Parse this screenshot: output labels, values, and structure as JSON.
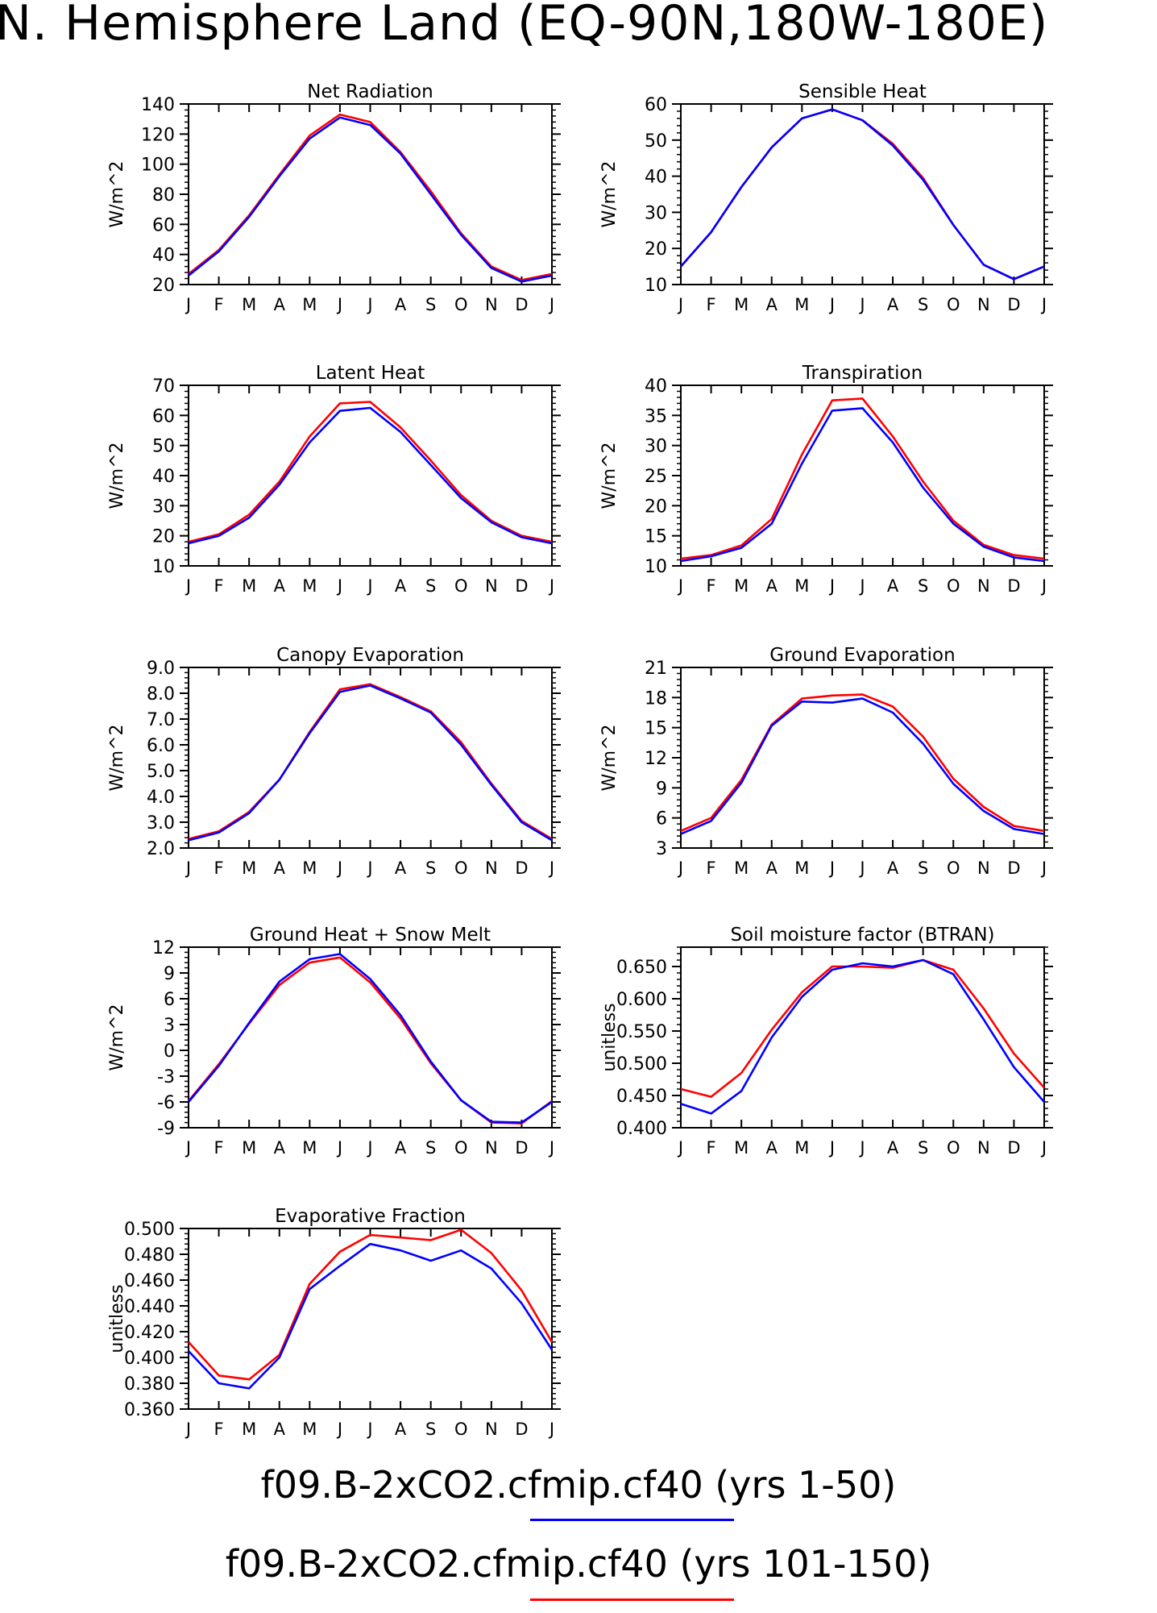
{
  "figure_title": "N. Hemisphere Land (EQ-90N,180W-180E)",
  "legend": [
    {
      "label": "f09.B-2xCO2.cfmip.cf40 (yrs 1-50)",
      "color": "#0000ff"
    },
    {
      "label": "f09.B-2xCO2.cfmip.cf40 (yrs 101-150)",
      "color": "#ff0000"
    }
  ],
  "chart_data": [
    {
      "type": "line",
      "title": "Net Radiation",
      "ylabel": "W/m^2",
      "categories": [
        "J",
        "F",
        "M",
        "A",
        "M",
        "J",
        "J",
        "A",
        "S",
        "O",
        "N",
        "D",
        "J"
      ],
      "ylim": [
        20,
        140
      ],
      "yticks": [
        "20",
        "40",
        "60",
        "80",
        "100",
        "120",
        "140"
      ],
      "series": [
        {
          "color": "#ff0000",
          "values": [
            27,
            43,
            66,
            93,
            119,
            133,
            128,
            108,
            82,
            54,
            32,
            23,
            27
          ]
        },
        {
          "color": "#0000ff",
          "values": [
            26,
            42,
            65,
            92,
            117,
            131,
            126,
            107,
            80,
            53,
            31,
            22,
            26
          ]
        }
      ]
    },
    {
      "type": "line",
      "title": "Sensible Heat",
      "ylabel": "W/m^2",
      "categories": [
        "J",
        "F",
        "M",
        "A",
        "M",
        "J",
        "J",
        "A",
        "S",
        "O",
        "N",
        "D",
        "J"
      ],
      "ylim": [
        10,
        60
      ],
      "yticks": [
        "10",
        "20",
        "30",
        "40",
        "50",
        "60"
      ],
      "series": [
        {
          "color": "#ff0000",
          "values": [
            15,
            24.5,
            37,
            48,
            56,
            58.5,
            55.5,
            49,
            39.5,
            26.5,
            15.5,
            11.5,
            15
          ]
        },
        {
          "color": "#0000ff",
          "values": [
            15,
            24.5,
            37,
            48,
            56,
            58.5,
            55.5,
            48.5,
            39,
            26.5,
            15.5,
            11.5,
            15
          ]
        }
      ]
    },
    {
      "type": "line",
      "title": "Latent Heat",
      "ylabel": "W/m^2",
      "categories": [
        "J",
        "F",
        "M",
        "A",
        "M",
        "J",
        "J",
        "A",
        "S",
        "O",
        "N",
        "D",
        "J"
      ],
      "ylim": [
        10,
        70
      ],
      "yticks": [
        "10",
        "20",
        "30",
        "40",
        "50",
        "60",
        "70"
      ],
      "series": [
        {
          "color": "#ff0000",
          "values": [
            18,
            20.5,
            27,
            38,
            53,
            64,
            64.5,
            56,
            45,
            33.5,
            25,
            20,
            18
          ]
        },
        {
          "color": "#0000ff",
          "values": [
            17.5,
            20,
            26,
            37,
            51,
            61.5,
            62.5,
            54.5,
            43.5,
            32.5,
            24.5,
            19.5,
            17.5
          ]
        }
      ]
    },
    {
      "type": "line",
      "title": "Transpiration",
      "ylabel": "W/m^2",
      "categories": [
        "J",
        "F",
        "M",
        "A",
        "M",
        "J",
        "J",
        "A",
        "S",
        "O",
        "N",
        "D",
        "J"
      ],
      "ylim": [
        10,
        40
      ],
      "yticks": [
        "10",
        "15",
        "20",
        "25",
        "30",
        "35",
        "40"
      ],
      "series": [
        {
          "color": "#ff0000",
          "values": [
            11.2,
            11.8,
            13.4,
            17.8,
            28.5,
            37.5,
            37.8,
            31.5,
            24,
            17.5,
            13.5,
            11.8,
            11.2
          ]
        },
        {
          "color": "#0000ff",
          "values": [
            10.8,
            11.6,
            13,
            17,
            27,
            35.8,
            36.2,
            30.5,
            23,
            17,
            13.2,
            11.4,
            10.8
          ]
        }
      ]
    },
    {
      "type": "line",
      "title": "Canopy Evaporation",
      "ylabel": "W/m^2",
      "categories": [
        "J",
        "F",
        "M",
        "A",
        "M",
        "J",
        "J",
        "A",
        "S",
        "O",
        "N",
        "D",
        "J"
      ],
      "ylim": [
        2.0,
        9.0
      ],
      "yticks": [
        "2.0",
        "3.0",
        "4.0",
        "5.0",
        "6.0",
        "7.0",
        "8.0",
        "9.0"
      ],
      "series": [
        {
          "color": "#ff0000",
          "values": [
            2.35,
            2.65,
            3.4,
            4.65,
            6.5,
            8.15,
            8.35,
            7.85,
            7.3,
            6.1,
            4.5,
            3.05,
            2.35
          ]
        },
        {
          "color": "#0000ff",
          "values": [
            2.3,
            2.6,
            3.35,
            4.65,
            6.45,
            8.05,
            8.3,
            7.8,
            7.25,
            6.0,
            4.45,
            3.0,
            2.3
          ]
        }
      ]
    },
    {
      "type": "line",
      "title": "Ground Evaporation",
      "ylabel": "W/m^2",
      "categories": [
        "J",
        "F",
        "M",
        "A",
        "M",
        "J",
        "J",
        "A",
        "S",
        "O",
        "N",
        "D",
        "J"
      ],
      "ylim": [
        3,
        21
      ],
      "yticks": [
        "3",
        "6",
        "9",
        "12",
        "15",
        "18",
        "21"
      ],
      "series": [
        {
          "color": "#ff0000",
          "values": [
            4.7,
            6,
            9.8,
            15.3,
            17.9,
            18.2,
            18.3,
            17.1,
            14.1,
            9.9,
            7.1,
            5.2,
            4.7
          ]
        },
        {
          "color": "#0000ff",
          "values": [
            4.4,
            5.7,
            9.5,
            15.2,
            17.6,
            17.5,
            17.9,
            16.5,
            13.4,
            9.4,
            6.7,
            4.9,
            4.4
          ]
        }
      ]
    },
    {
      "type": "line",
      "title": "Ground Heat + Snow Melt",
      "ylabel": "W/m^2",
      "categories": [
        "J",
        "F",
        "M",
        "A",
        "M",
        "J",
        "J",
        "A",
        "S",
        "O",
        "N",
        "D",
        "J"
      ],
      "ylim": [
        -9,
        12
      ],
      "yticks": [
        "-9",
        "-6",
        "-3",
        "0",
        "3",
        "6",
        "9",
        "12"
      ],
      "series": [
        {
          "color": "#ff0000",
          "values": [
            -5.9,
            -1.6,
            3.1,
            7.6,
            10.2,
            10.8,
            7.9,
            3.7,
            -1.5,
            -5.8,
            -8.4,
            -8.5,
            -5.9
          ]
        },
        {
          "color": "#0000ff",
          "values": [
            -6.0,
            -1.8,
            3.2,
            8.0,
            10.6,
            11.2,
            8.3,
            4.1,
            -1.3,
            -5.8,
            -8.3,
            -8.4,
            -6.0
          ]
        }
      ]
    },
    {
      "type": "line",
      "title": "Soil moisture factor (BTRAN)",
      "ylabel": "unitless",
      "categories": [
        "J",
        "F",
        "M",
        "A",
        "M",
        "J",
        "J",
        "A",
        "S",
        "O",
        "N",
        "D",
        "J"
      ],
      "ylim": [
        0.4,
        0.68
      ],
      "yticks": [
        "0.400",
        "0.450",
        "0.500",
        "0.550",
        "0.600",
        "0.650"
      ],
      "series": [
        {
          "color": "#ff0000",
          "values": [
            0.46,
            0.448,
            0.485,
            0.552,
            0.61,
            0.65,
            0.65,
            0.648,
            0.66,
            0.645,
            0.585,
            0.515,
            0.462
          ]
        },
        {
          "color": "#0000ff",
          "values": [
            0.437,
            0.422,
            0.457,
            0.54,
            0.603,
            0.645,
            0.655,
            0.65,
            0.66,
            0.638,
            0.568,
            0.494,
            0.44
          ]
        }
      ]
    },
    {
      "type": "line",
      "title": "Evaporative Fraction",
      "ylabel": "unitless",
      "categories": [
        "J",
        "F",
        "M",
        "A",
        "M",
        "J",
        "J",
        "A",
        "S",
        "O",
        "N",
        "D",
        "J"
      ],
      "ylim": [
        0.36,
        0.5
      ],
      "yticks": [
        "0.360",
        "0.380",
        "0.400",
        "0.420",
        "0.440",
        "0.460",
        "0.480",
        "0.500"
      ],
      "series": [
        {
          "color": "#ff0000",
          "values": [
            0.412,
            0.386,
            0.383,
            0.402,
            0.457,
            0.482,
            0.495,
            0.493,
            0.491,
            0.499,
            0.481,
            0.452,
            0.412
          ]
        },
        {
          "color": "#0000ff",
          "values": [
            0.405,
            0.38,
            0.376,
            0.4,
            0.453,
            0.471,
            0.488,
            0.483,
            0.475,
            0.483,
            0.469,
            0.442,
            0.406
          ]
        }
      ]
    }
  ]
}
